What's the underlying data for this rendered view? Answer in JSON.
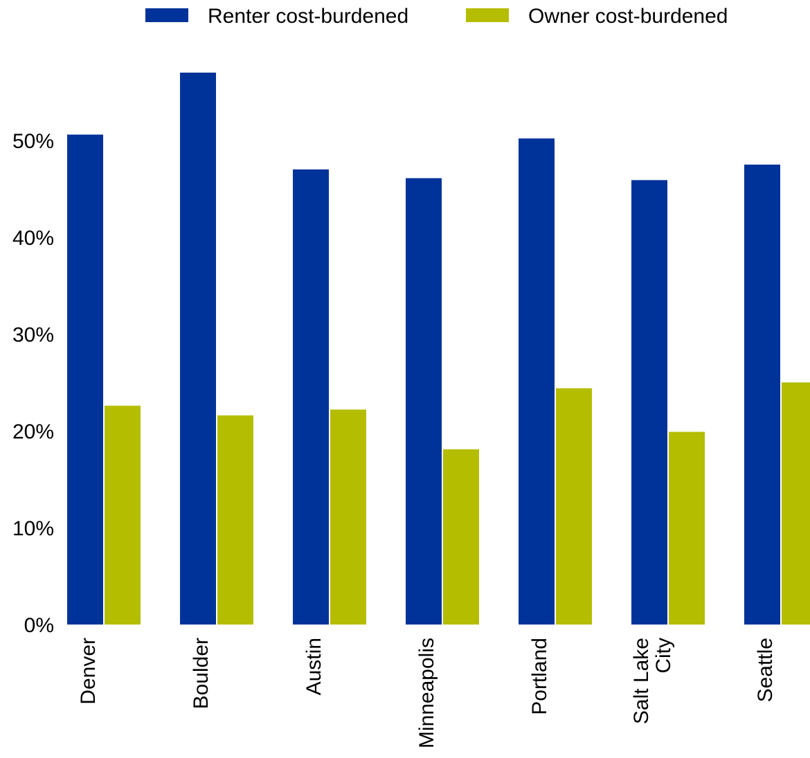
{
  "chart_data": {
    "type": "bar",
    "categories": [
      [
        "Denver"
      ],
      [
        "Boulder"
      ],
      [
        "Austin"
      ],
      [
        "Minneapolis"
      ],
      [
        "Portland"
      ],
      [
        "Salt Lake",
        "City"
      ],
      [
        "Seattle"
      ]
    ],
    "series": [
      {
        "name": "Renter cost-burdened",
        "color": "#003399",
        "values": [
          50.6,
          57.0,
          47.0,
          46.1,
          50.2,
          45.9,
          47.5
        ]
      },
      {
        "name": "Owner cost-burdened",
        "color": "#b5bd00",
        "values": [
          22.6,
          21.6,
          22.2,
          18.1,
          24.4,
          19.9,
          25.0
        ]
      }
    ],
    "yticks": [
      "0%",
      "10%",
      "20%",
      "30%",
      "40%",
      "50%"
    ],
    "ylim": [
      0,
      60
    ],
    "grid": false,
    "legend_position": "top"
  }
}
